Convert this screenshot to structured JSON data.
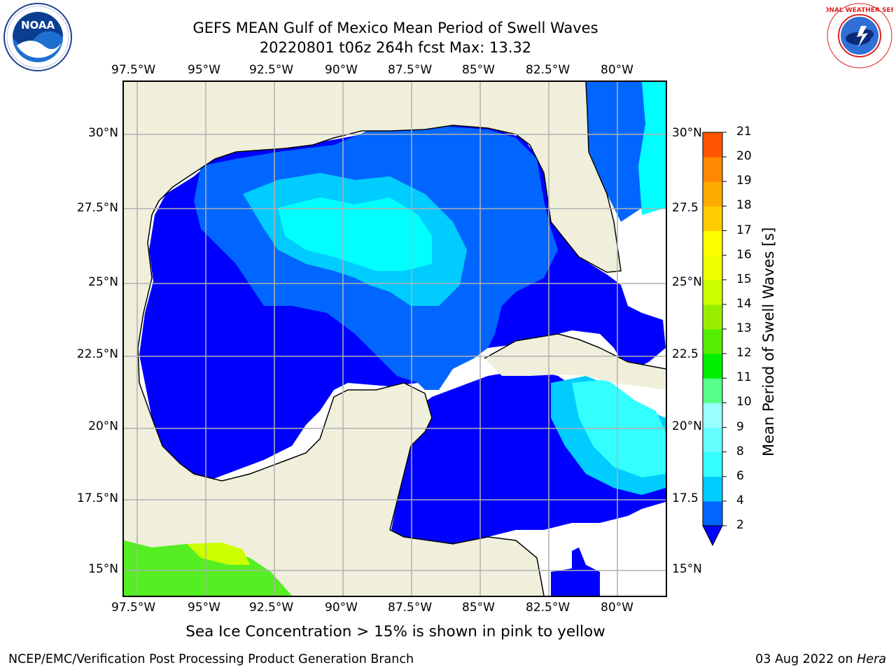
{
  "title": {
    "line1": "GEFS MEAN Gulf of Mexico Mean Period of Swell Waves",
    "line2": "20220801 t06z 264h fcst   Max: 13.32"
  },
  "lon_labels": [
    "97.5°W",
    "95°W",
    "92.5°W",
    "90°W",
    "87.5°W",
    "85°W",
    "82.5°W",
    "80°W"
  ],
  "lat_labels_left": [
    "30°N",
    "27.5°N",
    "25°N",
    "22.5°N",
    "20°N",
    "17.5°N",
    "15°N"
  ],
  "lat_labels_right": [
    "30°N",
    "27.5",
    "25°N",
    "22.5",
    "20°N",
    "17.5",
    "15°N"
  ],
  "colorbar": {
    "label": "Mean Period of Swell Waves [s]",
    "ticks": [
      "2",
      "4",
      "6",
      "8",
      "9",
      "10",
      "11",
      "12",
      "13",
      "14",
      "15",
      "16",
      "17",
      "18",
      "19",
      "20",
      "21"
    ],
    "colors": [
      "#0066ff",
      "#00ccff",
      "#33ffff",
      "#66ffff",
      "#99ffff",
      "#55ff88",
      "#00ee00",
      "#55ee00",
      "#99ee00",
      "#ccff00",
      "#eeff00",
      "#ffff00",
      "#ffcc00",
      "#ffaa00",
      "#ff8800",
      "#ff5500",
      "#ff2a00",
      "#ff0000"
    ],
    "extend_color": "#0000ff"
  },
  "map_colors": {
    "land": "#efefdc",
    "no_data": "#ffffff",
    "lt2": "#0000ff",
    "band2_4": "#0066ff",
    "band4_6": "#00ccff",
    "band6_8": "#33ffff",
    "band8_9": "#66ffff",
    "band10_11": "#55ff55",
    "band11_12": "#66ff00",
    "band12_13": "#ccff00",
    "grid": "#bbbbbb",
    "coast": "#000000"
  },
  "logos": {
    "left": "NOAA",
    "right": "NATIONAL WEATHER SERVICE"
  },
  "subtitle": "Sea Ice Concentration > 15% is shown in pink to yellow",
  "footer": {
    "left": "NCEP/EMC/Verification Post Processing Product Generation Branch",
    "right_date": "03 Aug 2022 on ",
    "right_host": "Hera"
  }
}
